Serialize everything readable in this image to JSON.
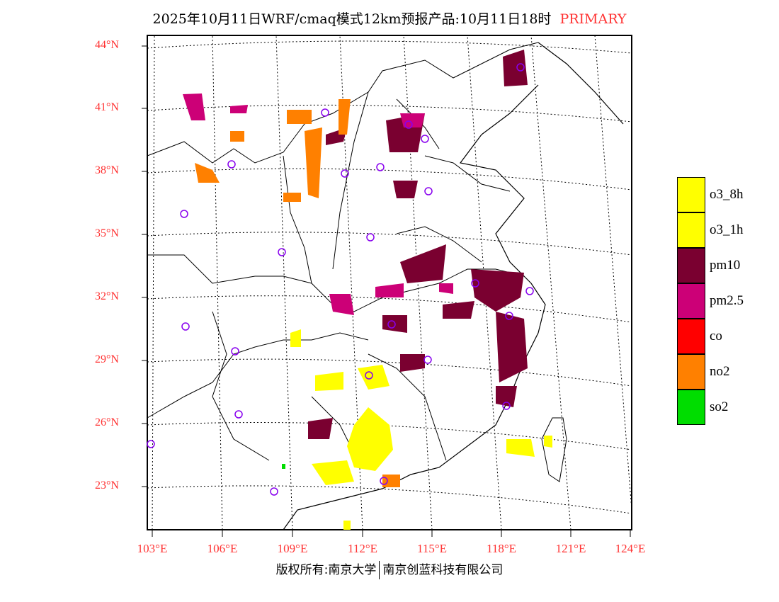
{
  "title": {
    "main": "2025年10月11日WRF/cmaq模式12km预报产品:10月11日18时",
    "primary": "PRIMARY"
  },
  "lat_labels": [
    "44°N",
    "41°N",
    "38°N",
    "35°N",
    "32°N",
    "29°N",
    "26°N",
    "23°N"
  ],
  "lon_labels": [
    "103°E",
    "106°E",
    "109°E",
    "112°E",
    "115°E",
    "118°E",
    "121°E",
    "124°E"
  ],
  "legend": [
    {
      "label": "o3_8h",
      "color": "#ffff00"
    },
    {
      "label": "o3_1h",
      "color": "#ffff00"
    },
    {
      "label": "pm10",
      "color": "#7a0030"
    },
    {
      "label": "pm2.5",
      "color": "#cc0077"
    },
    {
      "label": "co",
      "color": "#ff0000"
    },
    {
      "label": "no2",
      "color": "#ff8000"
    },
    {
      "label": "so2",
      "color": "#00dd00"
    }
  ],
  "footer": {
    "left": "版权所有:南京大学",
    "right": "南京创蓝科技有限公司"
  }
}
